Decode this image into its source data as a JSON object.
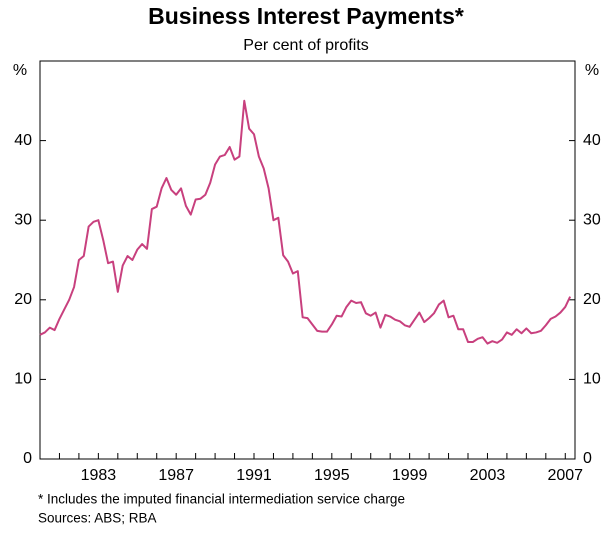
{
  "chart_data": {
    "type": "line",
    "title": "Business Interest Payments*",
    "subtitle": "Per cent of profits",
    "y_unit": "%",
    "footnote": "*   Includes the imputed financial intermediation service charge",
    "source": "Sources: ABS; RBA",
    "color": "#c8407e",
    "grid": false,
    "xlim": [
      1980,
      2007.5
    ],
    "xticks": [
      1983,
      1987,
      1991,
      1995,
      1999,
      2003,
      2007
    ],
    "xminor_ticks": [
      1981,
      1982,
      1983,
      1984,
      1985,
      1986,
      1987,
      1988,
      1989,
      1990,
      1991,
      1992,
      1993,
      1994,
      1995,
      1996,
      1997,
      1998,
      1999,
      2000,
      2001,
      2002,
      2003,
      2004,
      2005,
      2006,
      2007
    ],
    "ylim": [
      0,
      50
    ],
    "yticks": [
      0,
      10,
      20,
      30,
      40
    ],
    "x": [
      1980,
      1980.25,
      1980.5,
      1980.75,
      1981,
      1981.25,
      1981.5,
      1981.75,
      1982,
      1982.25,
      1982.5,
      1982.75,
      1983,
      1983.25,
      1983.5,
      1983.75,
      1984,
      1984.25,
      1984.5,
      1984.75,
      1985,
      1985.25,
      1985.5,
      1985.75,
      1986,
      1986.25,
      1986.5,
      1986.75,
      1987,
      1987.25,
      1987.5,
      1987.75,
      1988,
      1988.25,
      1988.5,
      1988.75,
      1989,
      1989.25,
      1989.5,
      1989.75,
      1990,
      1990.25,
      1990.5,
      1990.75,
      1991,
      1991.25,
      1991.5,
      1991.75,
      1992,
      1992.25,
      1992.5,
      1992.75,
      1993,
      1993.25,
      1993.5,
      1993.75,
      1994,
      1994.25,
      1994.5,
      1994.75,
      1995,
      1995.25,
      1995.5,
      1995.75,
      1996,
      1996.25,
      1996.5,
      1996.75,
      1997,
      1997.25,
      1997.5,
      1997.75,
      1998,
      1998.25,
      1998.5,
      1998.75,
      1999,
      1999.25,
      1999.5,
      1999.75,
      2000,
      2000.25,
      2000.5,
      2000.75,
      2001,
      2001.25,
      2001.5,
      2001.75,
      2002,
      2002.25,
      2002.5,
      2002.75,
      2003,
      2003.25,
      2003.5,
      2003.75,
      2004,
      2004.25,
      2004.5,
      2004.75,
      2005,
      2005.25,
      2005.5,
      2005.75,
      2006,
      2006.25,
      2006.5,
      2006.75,
      2007,
      2007.25
    ],
    "values": [
      15.6,
      15.9,
      16.5,
      16.2,
      17.6,
      18.8,
      20.0,
      21.6,
      25.0,
      25.5,
      29.2,
      29.8,
      30.0,
      27.5,
      24.6,
      24.8,
      21.0,
      24.3,
      25.5,
      25.0,
      26.3,
      27.0,
      26.4,
      31.4,
      31.7,
      34.0,
      35.3,
      33.8,
      33.2,
      34.0,
      31.8,
      30.7,
      32.6,
      32.7,
      33.2,
      34.7,
      37.0,
      38.0,
      38.2,
      39.2,
      37.6,
      38.0,
      45.0,
      41.5,
      40.8,
      38.0,
      36.5,
      34.0,
      30.0,
      30.3,
      25.6,
      24.8,
      23.3,
      23.6,
      17.8,
      17.7,
      16.9,
      16.1,
      16.0,
      16.0,
      16.9,
      18.0,
      17.9,
      19.1,
      19.9,
      19.6,
      19.7,
      18.3,
      18.0,
      18.4,
      16.5,
      18.1,
      17.9,
      17.5,
      17.3,
      16.8,
      16.6,
      17.5,
      18.4,
      17.2,
      17.7,
      18.3,
      19.4,
      19.9,
      17.8,
      18.0,
      16.3,
      16.3,
      14.7,
      14.7,
      15.1,
      15.3,
      14.5,
      14.8,
      14.6,
      15.0,
      15.9,
      15.6,
      16.3,
      15.8,
      16.4,
      15.8,
      15.9,
      16.1,
      16.8,
      17.6,
      17.9,
      18.4,
      19.1,
      20.4
    ]
  }
}
